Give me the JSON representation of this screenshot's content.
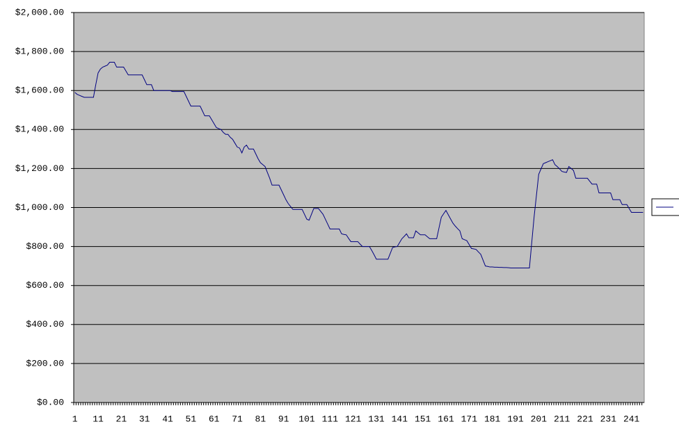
{
  "chart_data": {
    "type": "line",
    "categories": [
      "1",
      null,
      null,
      null,
      null,
      null,
      null,
      null,
      null,
      null,
      "11",
      null,
      null,
      null,
      null,
      null,
      null,
      null,
      null,
      null,
      "21",
      null,
      null,
      null,
      null,
      null,
      null,
      null,
      null,
      null,
      "31",
      null,
      null,
      null,
      null,
      null,
      null,
      null,
      null,
      null,
      "41",
      null,
      null,
      null,
      null,
      null,
      null,
      null,
      null,
      null,
      "51",
      null,
      null,
      null,
      null,
      null,
      null,
      null,
      null,
      null,
      "61",
      null,
      null,
      null,
      null,
      null,
      null,
      null,
      null,
      null,
      "71",
      null,
      null,
      null,
      null,
      null,
      null,
      null,
      null,
      null,
      "81",
      null,
      null,
      null,
      null,
      null,
      null,
      null,
      null,
      null,
      "91",
      null,
      null,
      null,
      null,
      null,
      null,
      null,
      null,
      null,
      "101",
      null,
      null,
      null,
      null,
      null,
      null,
      null,
      null,
      null,
      "111",
      null,
      null,
      null,
      null,
      null,
      null,
      null,
      null,
      null,
      "121",
      null,
      null,
      null,
      null,
      null,
      null,
      null,
      null,
      null,
      "131",
      null,
      null,
      null,
      null,
      null,
      null,
      null,
      null,
      null,
      "141",
      null,
      null,
      null,
      null,
      null,
      null,
      null,
      null,
      null,
      "151",
      null,
      null,
      null,
      null,
      null,
      null,
      null,
      null,
      null,
      "161",
      null,
      null,
      null,
      null,
      null,
      null,
      null,
      null,
      null,
      "171",
      null,
      null,
      null,
      null,
      null,
      null,
      null,
      null,
      null,
      "181",
      null,
      null,
      null,
      null,
      null,
      null,
      null,
      null,
      null,
      "191",
      null,
      null,
      null,
      null,
      null,
      null,
      null,
      null,
      null,
      "201",
      null,
      null,
      null,
      null,
      null,
      null,
      null,
      null,
      null,
      "211",
      null,
      null,
      null,
      null,
      null,
      null,
      null,
      null,
      null,
      "221",
      null,
      null,
      null,
      null,
      null,
      null,
      null,
      null,
      null,
      "231",
      null,
      null,
      null,
      null,
      null,
      null,
      null,
      null,
      null,
      "241",
      null,
      null,
      null,
      null,
      null
    ],
    "values": [
      1590,
      1580,
      1575,
      1570,
      1565,
      1565,
      1565,
      1565,
      1565,
      1630,
      1690,
      1710,
      1720,
      1725,
      1730,
      1745,
      1745,
      1745,
      1720,
      1720,
      1720,
      1720,
      1700,
      1680,
      1680,
      1680,
      1680,
      1680,
      1680,
      1680,
      1655,
      1630,
      1630,
      1630,
      1600,
      1600,
      1600,
      1600,
      1600,
      1600,
      1600,
      1600,
      1595,
      1595,
      1595,
      1595,
      1595,
      1595,
      1570,
      1545,
      1520,
      1520,
      1520,
      1520,
      1520,
      1495,
      1470,
      1470,
      1470,
      1450,
      1430,
      1410,
      1405,
      1400,
      1385,
      1375,
      1375,
      1360,
      1350,
      1330,
      1310,
      1305,
      1280,
      1310,
      1320,
      1300,
      1300,
      1300,
      1275,
      1250,
      1230,
      1220,
      1210,
      1180,
      1150,
      1115,
      1115,
      1115,
      1115,
      1090,
      1065,
      1040,
      1020,
      1005,
      990,
      990,
      990,
      990,
      990,
      965,
      940,
      935,
      965,
      995,
      995,
      995,
      980,
      965,
      940,
      915,
      890,
      890,
      890,
      890,
      890,
      865,
      862,
      860,
      842,
      825,
      825,
      825,
      825,
      812,
      800,
      800,
      800,
      800,
      780,
      758,
      735,
      735,
      735,
      735,
      735,
      735,
      765,
      795,
      798,
      800,
      820,
      840,
      852,
      865,
      845,
      845,
      845,
      880,
      870,
      860,
      860,
      860,
      850,
      840,
      840,
      840,
      840,
      895,
      950,
      968,
      985,
      963,
      941,
      920,
      905,
      892,
      880,
      840,
      835,
      830,
      810,
      790,
      788,
      785,
      772,
      760,
      730,
      700,
      698,
      695,
      695,
      694,
      694,
      693,
      693,
      692,
      692,
      691,
      690,
      690,
      690,
      690,
      690,
      690,
      690,
      690,
      690,
      820,
      950,
      1060,
      1170,
      1198,
      1225,
      1230,
      1235,
      1240,
      1245,
      1220,
      1210,
      1198,
      1185,
      1182,
      1180,
      1210,
      1200,
      1190,
      1150,
      1150,
      1150,
      1150,
      1150,
      1150,
      1135,
      1120,
      1120,
      1120,
      1075,
      1075,
      1075,
      1075,
      1075,
      1075,
      1040,
      1040,
      1040,
      1040,
      1015,
      1015,
      1015,
      995,
      975,
      975,
      975,
      975,
      975,
      975
    ],
    "color": "#000080",
    "ylim": [
      0,
      2000
    ],
    "yticks": [
      {
        "value": 0,
        "label": "$0.00"
      },
      {
        "value": 200,
        "label": "$200.00"
      },
      {
        "value": 400,
        "label": "$400.00"
      },
      {
        "value": 600,
        "label": "$600.00"
      },
      {
        "value": 800,
        "label": "$800.00"
      },
      {
        "value": 1000,
        "label": "$1,000.00"
      },
      {
        "value": 1200,
        "label": "$1,200.00"
      },
      {
        "value": 1400,
        "label": "$1,400.00"
      },
      {
        "value": 1600,
        "label": "$1,600.00"
      },
      {
        "value": 1800,
        "label": "$1,800.00"
      },
      {
        "value": 2000,
        "label": "$2,000.00"
      }
    ],
    "grid": true
  }
}
